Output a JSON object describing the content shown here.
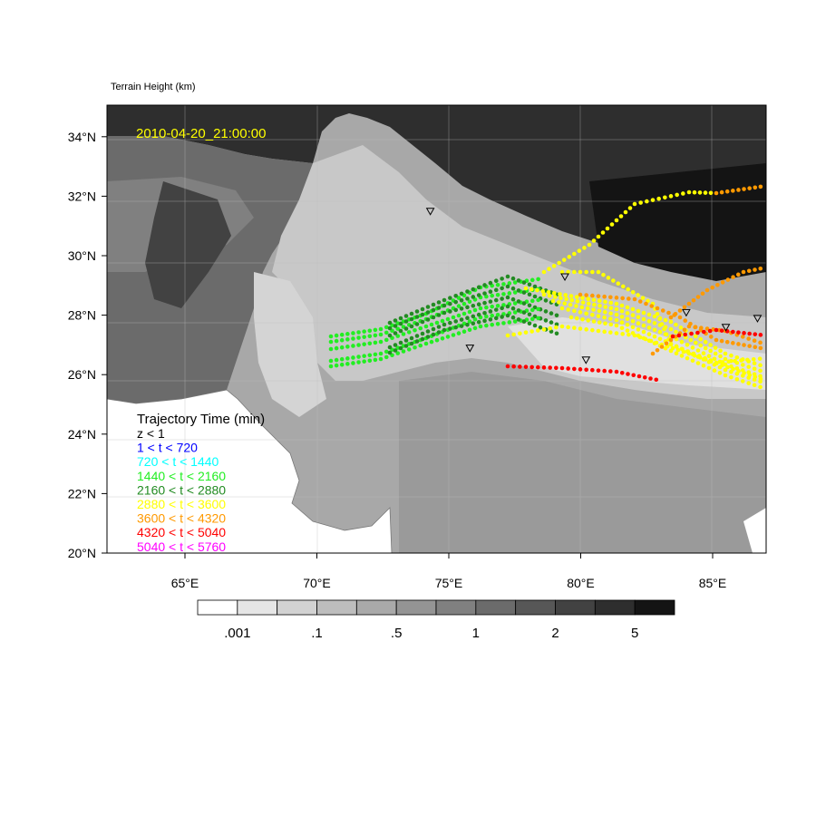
{
  "header": {
    "title": "Terrain Height   (km)"
  },
  "timestamp": "2010-04-20_21:00:00",
  "lat_ticks": [
    "20°N",
    "22°N",
    "24°N",
    "26°N",
    "28°N",
    "30°N",
    "32°N",
    "34°N"
  ],
  "lon_ticks": [
    "65°E",
    "70°E",
    "75°E",
    "80°E",
    "85°E"
  ],
  "legend": {
    "title": "Trajectory Time (min)",
    "items": [
      {
        "label": "z < 1",
        "color": "#000000"
      },
      {
        "label": "1 < t < 720",
        "color": "#0000ff"
      },
      {
        "label": "720 < t < 1440",
        "color": "#00ffff"
      },
      {
        "label": "1440 < t < 2160",
        "color": "#22ee22"
      },
      {
        "label": "2160 < t < 2880",
        "color": "#228b22"
      },
      {
        "label": "2880 < t < 3600",
        "color": "#ffff00"
      },
      {
        "label": "3600 < t < 4320",
        "color": "#ff9900"
      },
      {
        "label": "4320 < t < 5040",
        "color": "#ff0000"
      },
      {
        "label": "5040 < t < 5760",
        "color": "#ff00ff"
      }
    ]
  },
  "colorbar": {
    "colors": [
      "#ffffff",
      "#e6e6e6",
      "#d2d2d2",
      "#bdbdbd",
      "#a9a9a9",
      "#949494",
      "#808080",
      "#6b6b6b",
      "#575757",
      "#424242",
      "#2e2e2e",
      "#141414"
    ],
    "labels": [
      ".001",
      ".1",
      ".5",
      "1",
      "2",
      "5"
    ]
  },
  "stations": [
    {
      "lon": 74.3,
      "lat": 31.5
    },
    {
      "lon": 79.4,
      "lat": 29.3
    },
    {
      "lon": 75.8,
      "lat": 26.9
    },
    {
      "lon": 80.2,
      "lat": 26.5
    },
    {
      "lon": 84.0,
      "lat": 28.1
    },
    {
      "lon": 85.5,
      "lat": 27.6
    },
    {
      "lon": 86.7,
      "lat": 27.9
    }
  ]
}
